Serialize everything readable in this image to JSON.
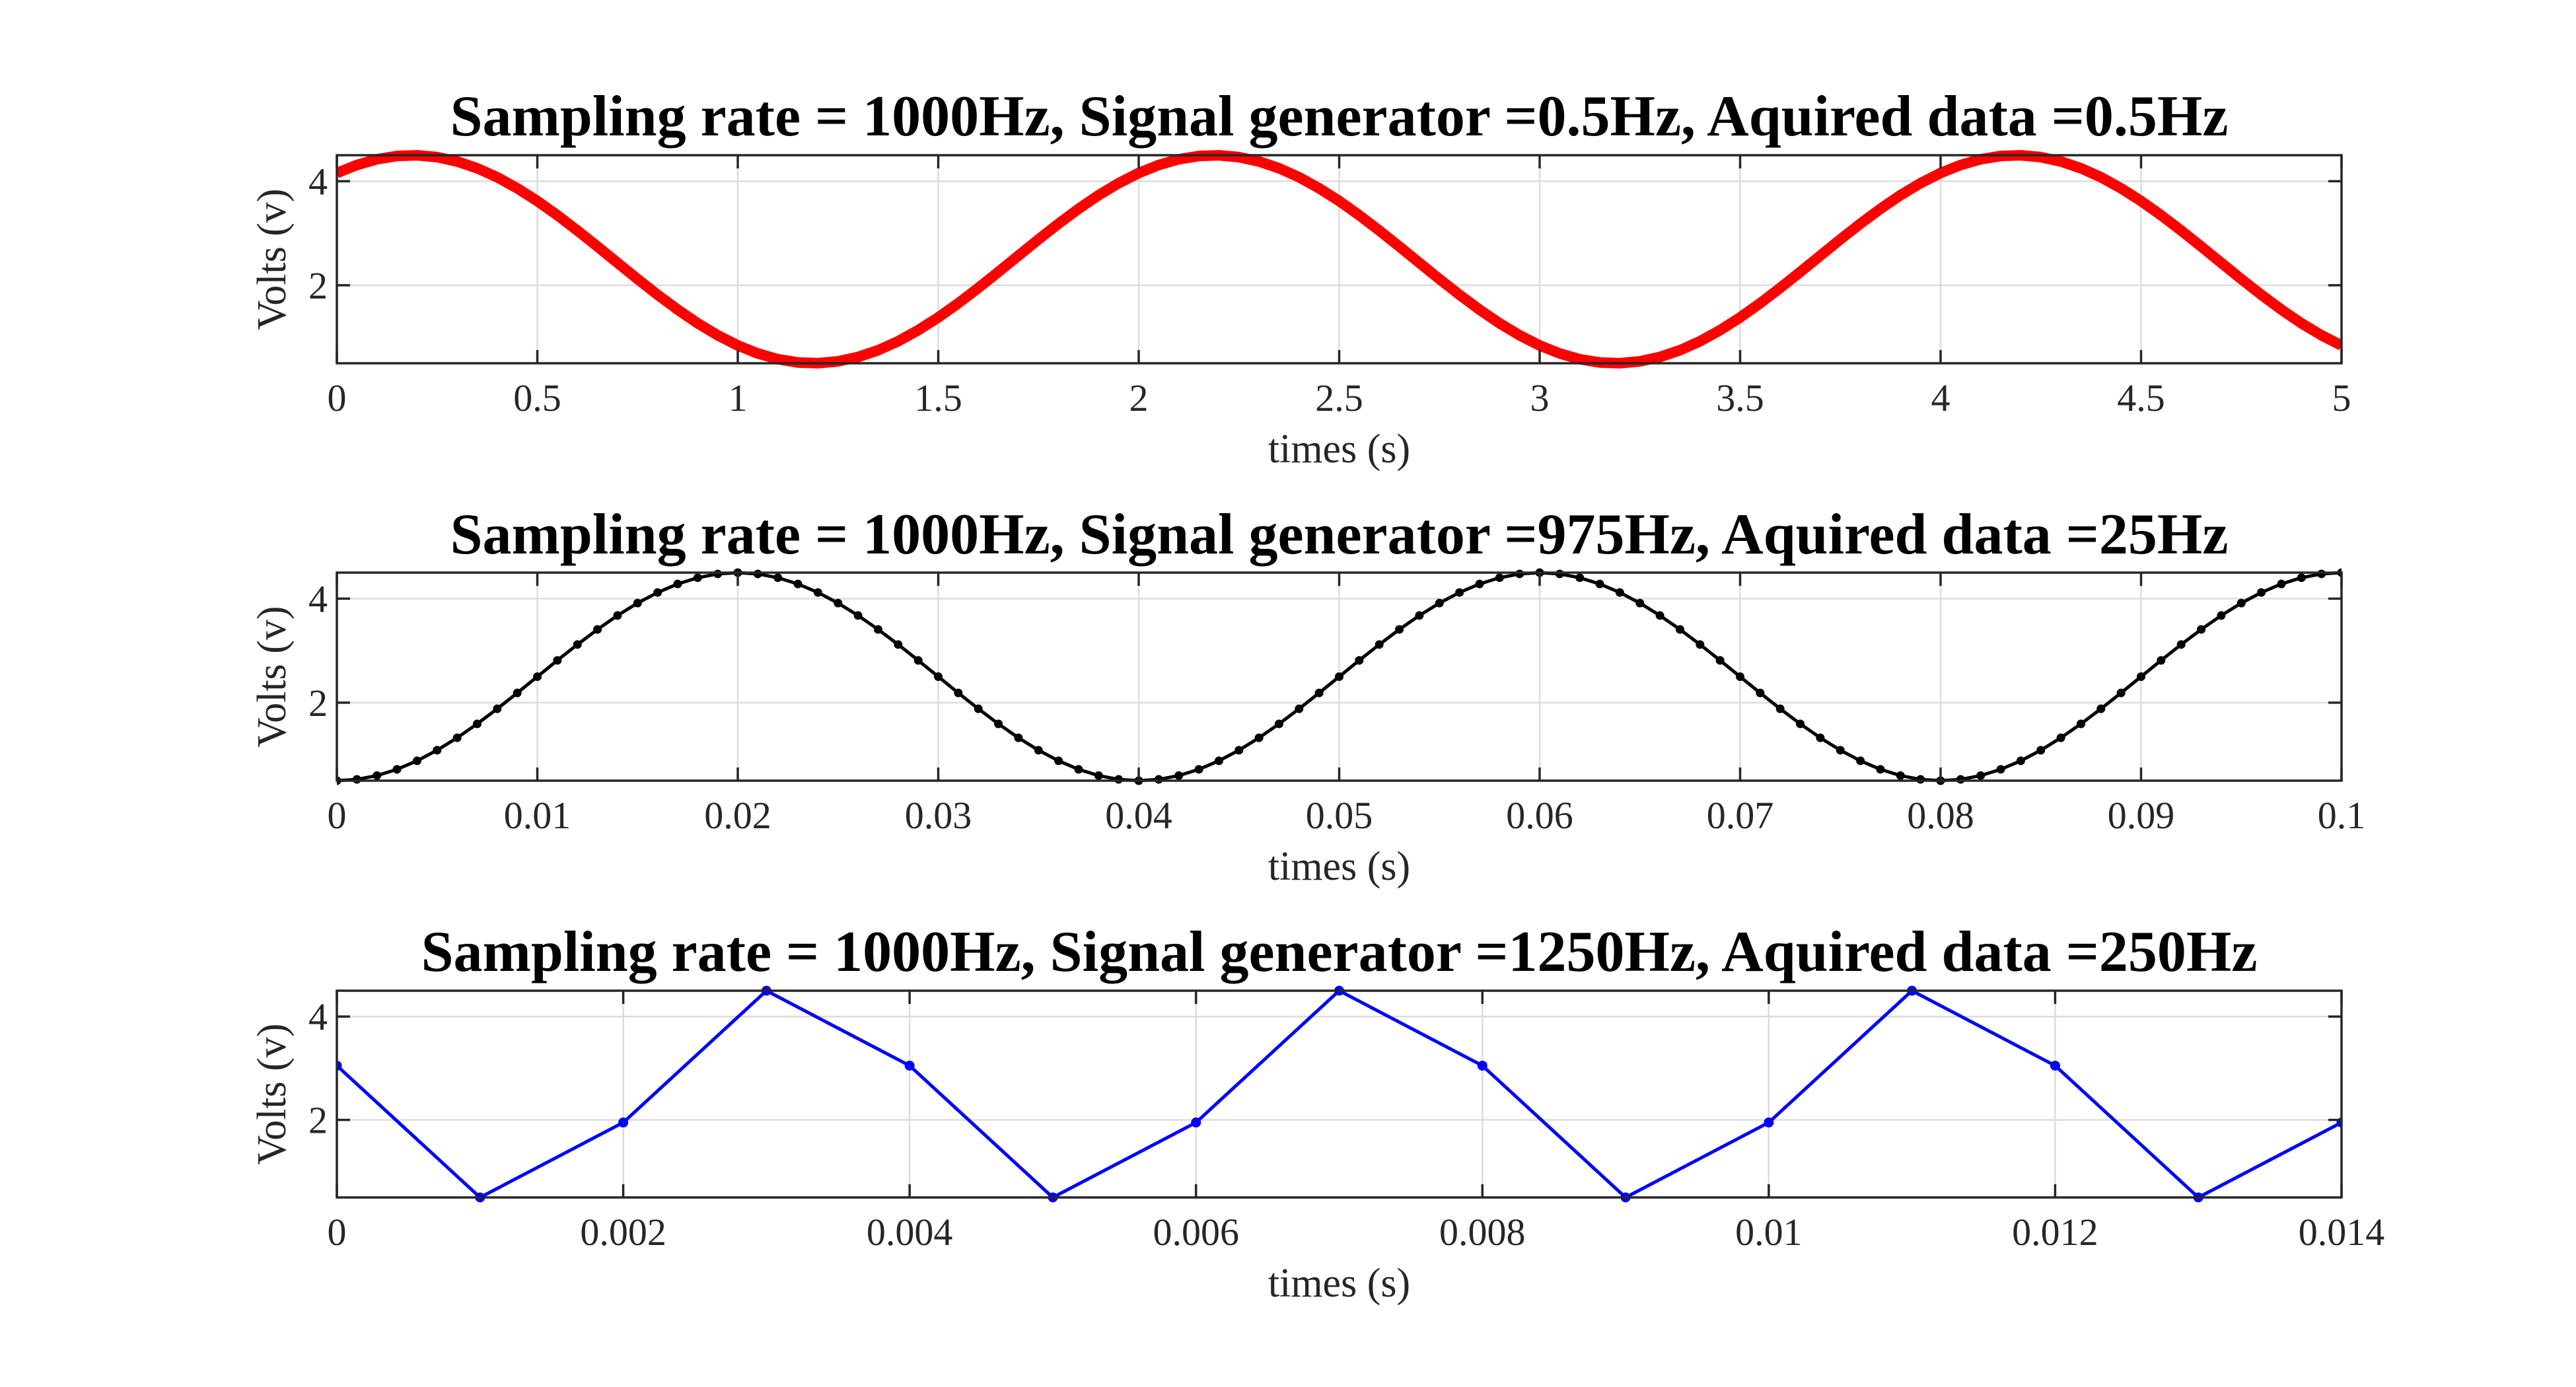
{
  "chart_data": [
    {
      "type": "line",
      "title": "Sampling rate = 1000Hz, Signal generator =0.5Hz, Aquired data =0.5Hz",
      "xlabel": "times (s)",
      "ylabel": "Volts (v)",
      "xlim": [
        0,
        5
      ],
      "ylim": [
        0.5,
        4.5
      ],
      "xticks": [
        0,
        0.5,
        1,
        1.5,
        2,
        2.5,
        3,
        3.5,
        4,
        4.5,
        5
      ],
      "xtick_labels": [
        "0",
        "0.5",
        "1",
        "1.5",
        "2",
        "2.5",
        "3",
        "3.5",
        "4",
        "4.5",
        "5"
      ],
      "yticks": [
        2,
        4
      ],
      "ytick_labels": [
        "2",
        "4"
      ],
      "grid": true,
      "signal": {
        "offset": 2.5,
        "amplitude": 2.0,
        "frequency_hz": 0.5,
        "phase_deg": 56
      },
      "sample_spacing": 0.05,
      "series": [
        {
          "color": "#ff0000",
          "line_weight": "thick",
          "markers": false
        }
      ]
    },
    {
      "type": "line",
      "title": "Sampling rate = 1000Hz, Signal generator =975Hz, Aquired data =25Hz",
      "xlabel": "times (s)",
      "ylabel": "Volts (v)",
      "xlim": [
        0,
        0.1
      ],
      "ylim": [
        0.5,
        4.5
      ],
      "xticks": [
        0,
        0.01,
        0.02,
        0.03,
        0.04,
        0.05,
        0.06,
        0.07,
        0.08,
        0.09,
        0.1
      ],
      "xtick_labels": [
        "0",
        "0.01",
        "0.02",
        "0.03",
        "0.04",
        "0.05",
        "0.06",
        "0.07",
        "0.08",
        "0.09",
        "0.1"
      ],
      "yticks": [
        2,
        4
      ],
      "ytick_labels": [
        "2",
        "4"
      ],
      "grid": true,
      "signal": {
        "offset": 2.5,
        "amplitude": 2.0,
        "frequency_hz": 25,
        "phase_deg": -90
      },
      "sample_spacing": 0.001,
      "series": [
        {
          "color": "#000000",
          "line_weight": "thin",
          "markers": true
        }
      ]
    },
    {
      "type": "line",
      "title": "Sampling rate = 1000Hz, Signal generator =1250Hz, Aquired data =250Hz",
      "xlabel": "times (s)",
      "ylabel": "Volts (v)",
      "xlim": [
        0,
        0.014
      ],
      "ylim": [
        0.5,
        4.5
      ],
      "xticks": [
        0,
        0.002,
        0.004,
        0.006,
        0.008,
        0.01,
        0.012,
        0.014
      ],
      "xtick_labels": [
        "0",
        "0.002",
        "0.004",
        "0.006",
        "0.008",
        "0.01",
        "0.012",
        "0.014"
      ],
      "yticks": [
        2,
        4
      ],
      "ytick_labels": [
        "2",
        "4"
      ],
      "grid": true,
      "series": [
        {
          "color": "#0000ff",
          "line_weight": "thin",
          "markers": true,
          "x": [
            0,
            0.001,
            0.002,
            0.003,
            0.004,
            0.005,
            0.006,
            0.007,
            0.008,
            0.009,
            0.01,
            0.011,
            0.012,
            0.013,
            0.014
          ],
          "y": [
            3.05,
            0.5,
            1.95,
            4.5,
            3.05,
            0.5,
            1.95,
            4.5,
            3.05,
            0.5,
            1.95,
            4.5,
            3.05,
            0.5,
            1.95
          ]
        }
      ]
    }
  ]
}
